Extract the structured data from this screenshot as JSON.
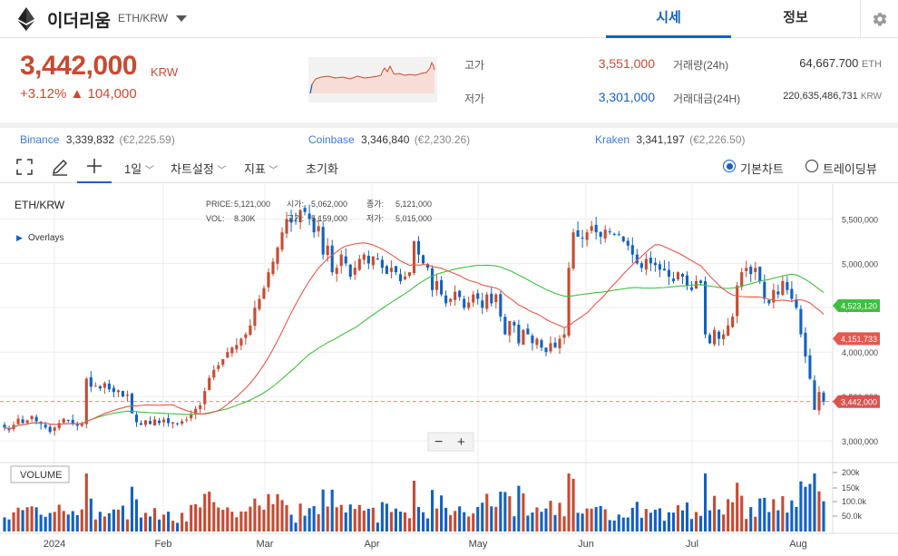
{
  "header": {
    "coin_name": "이더리움",
    "pair": "ETH/KRW",
    "tab_price": "시세",
    "tab_info": "정보"
  },
  "summary": {
    "price": "3,442,000",
    "unit": "KRW",
    "change_pct": "+3.12%",
    "change_amt": "▲ 104,000",
    "high_label": "고가",
    "high_value": "3,551,000",
    "low_label": "저가",
    "low_value": "3,301,000",
    "vol_label": "거래량(24h)",
    "vol_value": "64,667.700",
    "vol_unit": "ETH",
    "amt_label": "거래대금(24H)",
    "amt_value": "220,635,486,731",
    "amt_unit": "KRW"
  },
  "exchanges": [
    {
      "name": "Binance",
      "value": "3,339,832",
      "eur": "(€2,225.59)"
    },
    {
      "name": "Coinbase",
      "value": "3,346,840",
      "eur": "(€2,230.26)"
    },
    {
      "name": "Kraken",
      "value": "3,341,197",
      "eur": "(€2,226.50)"
    }
  ],
  "toolbar": {
    "interval": "1일",
    "chart_settings": "차트설정",
    "indicators": "지표",
    "reset": "초기화",
    "basic_chart": "기본차트",
    "tradingview": "트레이딩뷰"
  },
  "chart_labels": {
    "symbol": "ETH/KRW",
    "overlays": "Overlays",
    "price_label": "PRICE:",
    "price_value": "5,121,000",
    "vol_label": "VOL:",
    "vol_value": "8.30K",
    "high_label": "고가:",
    "high_value": "5,159,000",
    "open_label": "시가:",
    "open_value": "5,062,000",
    "close_label": "종가:",
    "close_value": "5,121,000",
    "low_label": "저가:",
    "low_value": "5,015,000",
    "volume_title": "VOLUME",
    "badge_ma_green": "4,523,120",
    "badge_ma_red": "4,151,733",
    "badge_price": "3,442,000"
  },
  "colors": {
    "up": "#c84a31",
    "down": "#1261c4",
    "ma_short": "#e8574a",
    "ma_long": "#3fbf3f"
  },
  "chart_data": {
    "type": "candlestick",
    "x_ticks": [
      "2024",
      "Feb",
      "Mar",
      "Apr",
      "May",
      "Jun",
      "Jul",
      "Aug"
    ],
    "y_ticks": [
      "3,000,000",
      "3,500,000",
      "4,000,000",
      "4,500,000",
      "5,000,000",
      "5,500,000"
    ],
    "vol_ticks": [
      "200k",
      "150k",
      "100.0k",
      "50.0k"
    ],
    "current_price": 3442000,
    "close": [
      3150000,
      3120000,
      3180000,
      3250000,
      3200000,
      3230000,
      3280000,
      3220000,
      3190000,
      3150000,
      3100000,
      3150000,
      3200000,
      3250000,
      3230000,
      3190000,
      3170000,
      3200000,
      3700000,
      3610000,
      3620000,
      3590000,
      3650000,
      3580000,
      3550000,
      3570000,
      3500000,
      3520000,
      3310000,
      3210000,
      3180000,
      3230000,
      3190000,
      3240000,
      3200000,
      3240000,
      3200000,
      3210000,
      3190000,
      3220000,
      3240000,
      3300000,
      3360000,
      3400000,
      3560000,
      3710000,
      3800000,
      3850000,
      3920000,
      4000000,
      4050000,
      4080000,
      4150000,
      4200000,
      4300000,
      4500000,
      4600000,
      4720000,
      4900000,
      5020000,
      5180000,
      5350000,
      5500000,
      5460000,
      5480000,
      5600000,
      5580000,
      5500000,
      5350000,
      5420000,
      5100000,
      5200000,
      4900000,
      4950000,
      5100000,
      5000000,
      4850000,
      4950000,
      5050000,
      5100000,
      5000000,
      5080000,
      5050000,
      4950000,
      4880000,
      4950000,
      4900000,
      4800000,
      4850000,
      4900000,
      5250000,
      5100000,
      5000000,
      4950000,
      4700000,
      4800000,
      4650000,
      4550000,
      4600000,
      4680000,
      4620000,
      4500000,
      4560000,
      4650000,
      4600000,
      4500000,
      4650000,
      4550000,
      4650000,
      4400000,
      4200000,
      4350000,
      4300000,
      4100000,
      4250000,
      4200000,
      4100000,
      4150000,
      4050000,
      4000000,
      4100000,
      4050000,
      4150000,
      4200000,
      4950000,
      5350000,
      5300000,
      5280000,
      5350000,
      5420000,
      5350000,
      5300000,
      5380000,
      5350000,
      5330000,
      5320000,
      5250000,
      5200000,
      5100000,
      5000000,
      4950000,
      5050000,
      5000000,
      4980000,
      4930000,
      4920000,
      4850000,
      4800000,
      4900000,
      4850000,
      4750000,
      4700000,
      4800000,
      4780000,
      4200000,
      4100000,
      4250000,
      4150000,
      4200000,
      4300000,
      4400000,
      4750000,
      4900000,
      4950000,
      4880000,
      4950000,
      4800000,
      4600000,
      4550000,
      4700000,
      4650000,
      4800000,
      4700000,
      4600000,
      4500000,
      4200000,
      3950000,
      3700000,
      3350000,
      3550000,
      3442000
    ]
  }
}
